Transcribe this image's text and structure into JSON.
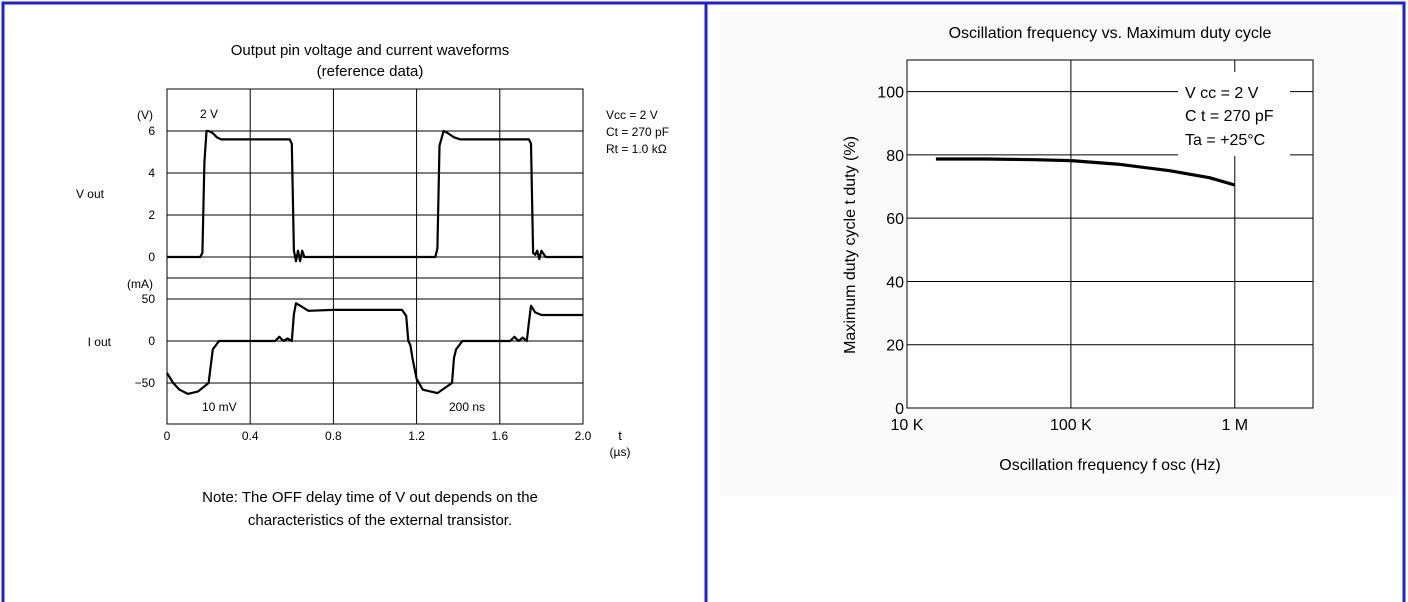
{
  "colors": {
    "border": "#1f1fd6",
    "grid": "#000000",
    "trace": "#000000",
    "panel_bg": "#fafafa"
  },
  "chart_data": [
    {
      "type": "line",
      "title": "Output pin voltage and current waveforms",
      "subtitle": "(reference data)",
      "xlabel": "t",
      "xunit": "(µs)",
      "x_ticks": [
        "0",
        "0.4",
        "0.8",
        "1.2",
        "1.6",
        "2.0"
      ],
      "xlim": [
        0,
        2.0
      ],
      "grid": true,
      "conditions": [
        "Vcc = 2 V",
        "Ct = 270 pF",
        "Rt = 1.0 kΩ"
      ],
      "scale_labels": {
        "v_scale": "2 V",
        "i_scale": "10 mV",
        "time_scale": "200 ns"
      },
      "note_lines": [
        "Note: The OFF delay time of V out depends on the",
        "characteristics of the external transistor."
      ],
      "panels": [
        {
          "name": "V out",
          "unit": "(V)",
          "ylim": [
            0,
            6
          ],
          "y_ticks": [
            "0",
            "2",
            "4",
            "6"
          ],
          "series": [
            {
              "x": [
                0,
                0.16,
                0.17,
                0.18,
                0.19,
                0.2,
                0.22,
                0.24,
                0.26,
                0.3,
                0.59,
                0.6,
                0.61,
                0.62,
                0.63,
                0.64,
                0.65,
                0.66,
                0.68,
                0.72,
                1.29,
                1.3,
                1.31,
                1.33,
                1.35,
                1.38,
                1.41,
                1.5,
                1.74,
                1.75,
                1.76,
                1.77,
                1.78,
                1.79,
                1.8,
                1.82,
                1.86,
                2.0
              ],
              "y": [
                0,
                0,
                0.2,
                4.5,
                6,
                6,
                5.9,
                5.7,
                5.6,
                5.6,
                5.6,
                5.4,
                0.3,
                -0.2,
                0.3,
                -0.2,
                0.3,
                0,
                0,
                0,
                0,
                0.4,
                5.3,
                6,
                5.9,
                5.7,
                5.6,
                5.6,
                5.6,
                5.4,
                0.2,
                0.1,
                0.3,
                -0.1,
                0.3,
                0,
                0,
                0
              ]
            }
          ]
        },
        {
          "name": "I out",
          "unit": "(mA)",
          "ylim": [
            -50,
            50
          ],
          "y_ticks": [
            "-50",
            "0",
            "50"
          ],
          "series": [
            {
              "x": [
                0,
                0.03,
                0.06,
                0.1,
                0.15,
                0.2,
                0.21,
                0.22,
                0.25,
                0.3,
                0.4,
                0.5,
                0.52,
                0.54,
                0.56,
                0.58,
                0.6,
                0.61,
                0.62,
                0.64,
                0.68,
                0.8,
                0.95,
                1.1,
                1.13,
                1.15,
                1.16,
                1.17,
                1.18,
                1.2,
                1.23,
                1.3,
                1.37,
                1.38,
                1.39,
                1.42,
                1.55,
                1.65,
                1.67,
                1.69,
                1.71,
                1.73,
                1.74,
                1.75,
                1.77,
                1.8,
                2.0
              ],
              "y": [
                -38,
                -50,
                -58,
                -63,
                -60,
                -50,
                -30,
                -10,
                0,
                0,
                0,
                0,
                0,
                5,
                0,
                3,
                0,
                32,
                45,
                42,
                36,
                37,
                37,
                37,
                37,
                30,
                0,
                -5,
                -20,
                -45,
                -58,
                -62,
                -50,
                -20,
                -10,
                0,
                0,
                0,
                5,
                0,
                4,
                0,
                22,
                42,
                34,
                31,
                31
              ]
            }
          ]
        }
      ]
    },
    {
      "type": "line",
      "title": "Oscillation frequency vs. Maximum duty cycle",
      "xlabel": "Oscillation frequency f osc (Hz)",
      "ylabel": "Maximum duty cycle t duty (%)",
      "x_scale": "log",
      "x_ticks": [
        "10 K",
        "100 K",
        "1 M"
      ],
      "x_tick_values": [
        10000,
        100000,
        1000000
      ],
      "xlim": [
        10000,
        3000000
      ],
      "ylim": [
        0,
        110
      ],
      "y_ticks": [
        "0",
        "20",
        "40",
        "60",
        "80",
        "100"
      ],
      "grid": true,
      "conditions": [
        "V cc = 2 V",
        "C t = 270 pF",
        "Ta = +25°C"
      ],
      "series": [
        {
          "x": [
            15000,
            30000,
            60000,
            100000,
            200000,
            400000,
            700000,
            1000000
          ],
          "y": [
            78.7,
            78.7,
            78.5,
            78.2,
            77.0,
            75.0,
            72.8,
            70.5
          ]
        }
      ]
    }
  ]
}
